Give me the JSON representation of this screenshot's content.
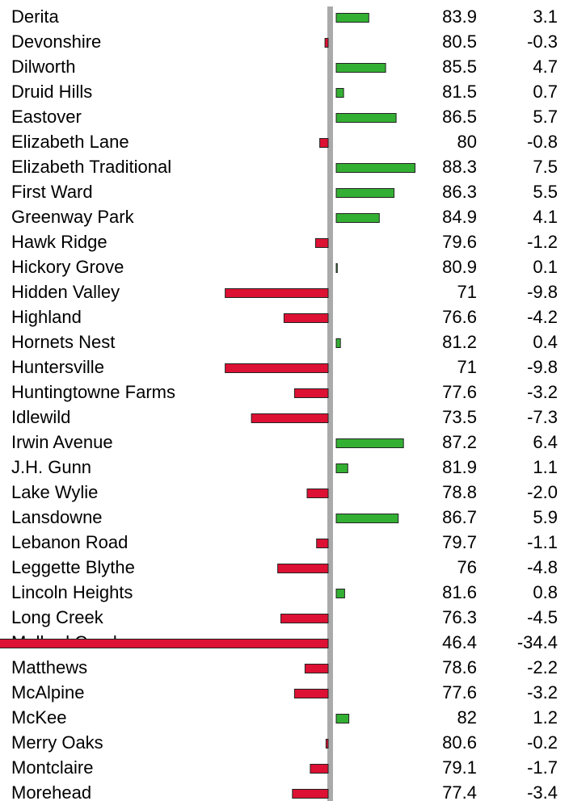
{
  "chart_data": {
    "type": "bar",
    "orientation": "horizontal",
    "categories": [
      "Derita",
      "Devonshire",
      "Dilworth",
      "Druid Hills",
      "Eastover",
      "Elizabeth Lane",
      "Elizabeth Traditional",
      "First Ward",
      "Greenway Park",
      "Hawk Ridge",
      "Hickory Grove",
      "Hidden Valley",
      "Highland",
      "Hornets Nest",
      "Huntersville",
      "Huntingtowne Farms",
      "Idlewild",
      "Irwin Avenue",
      "J.H. Gunn",
      "Lake Wylie",
      "Lansdowne",
      "Lebanon Road",
      "Leggette Blythe",
      "Lincoln Heights",
      "Long Creek",
      "Mallard Creek",
      "Matthews",
      "McAlpine",
      "McKee",
      "Merry Oaks",
      "Montclaire",
      "Morehead"
    ],
    "scores": [
      83.9,
      80.5,
      85.5,
      81.5,
      86.5,
      80,
      88.3,
      86.3,
      84.9,
      79.6,
      80.9,
      71,
      76.6,
      81.2,
      71,
      77.6,
      73.5,
      87.2,
      81.9,
      78.8,
      86.7,
      79.7,
      76,
      81.6,
      76.3,
      46.4,
      78.6,
      77.6,
      82,
      80.6,
      79.1,
      77.4
    ],
    "values": [
      3.1,
      -0.3,
      4.7,
      0.7,
      5.7,
      -0.8,
      7.5,
      5.5,
      4.1,
      -1.2,
      0.1,
      -9.8,
      -4.2,
      0.4,
      -9.8,
      -3.2,
      -7.3,
      6.4,
      1.1,
      -2.0,
      5.9,
      -1.1,
      -4.8,
      0.8,
      -4.5,
      -34.4,
      -2.2,
      -3.2,
      1.2,
      -0.2,
      -1.7,
      -3.4
    ],
    "value_labels": [
      "3.1",
      "-0.3",
      "4.7",
      "0.7",
      "5.7",
      "-0.8",
      "7.5",
      "5.5",
      "4.1",
      "-1.2",
      "0.1",
      "-9.8",
      "-4.2",
      "0.4",
      "-9.8",
      "-3.2",
      "-7.3",
      "6.4",
      "1.1",
      "-2.0",
      "5.9",
      "-1.1",
      "-4.8",
      "0.8",
      "-4.5",
      "-34.4",
      "-2.2",
      "-3.2",
      "1.2",
      "-0.2",
      "-1.7",
      "-3.4"
    ],
    "positive_color": "#33b033",
    "negative_color": "#dd1133"
  }
}
